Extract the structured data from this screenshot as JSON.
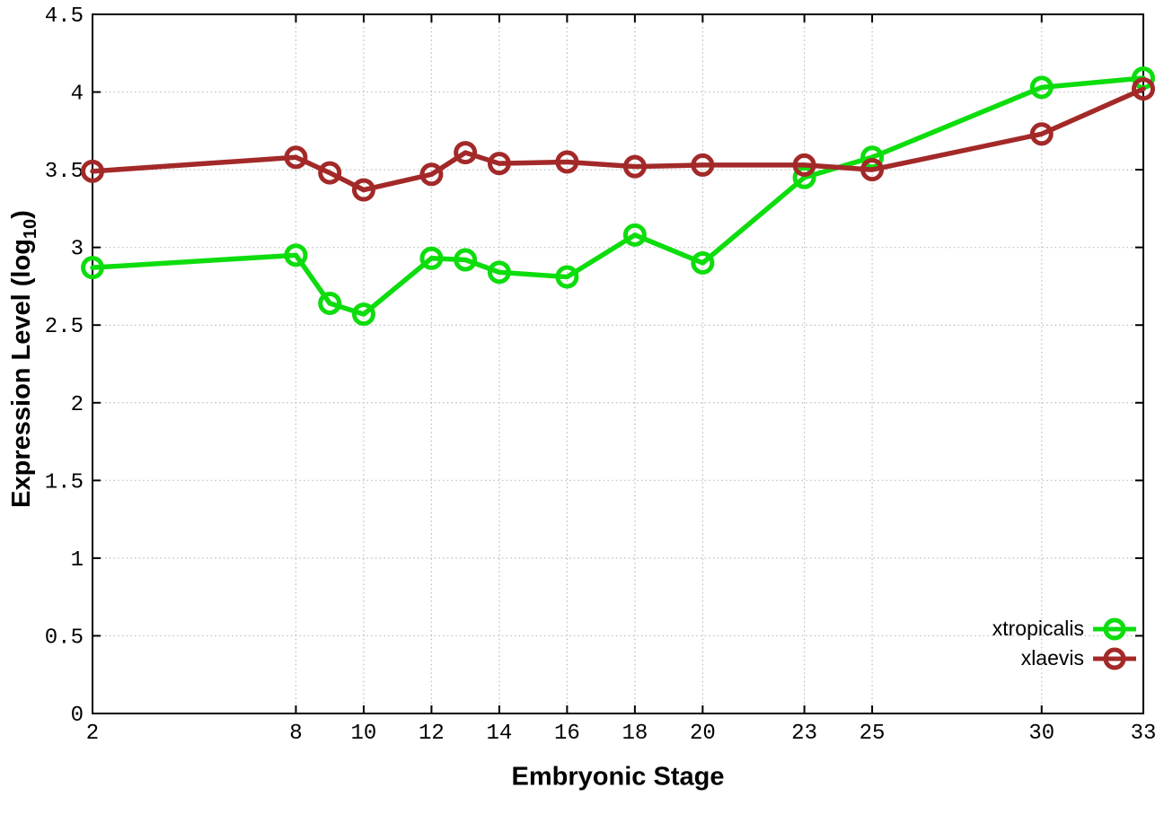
{
  "chart_data": {
    "type": "line",
    "title": "",
    "xlabel": "Embryonic Stage",
    "ylabel": "Expression Level (log10)",
    "ylabel_parts": {
      "main": "Expression Level (log",
      "sub": "10",
      "end": ")"
    },
    "xlim": [
      2,
      33
    ],
    "ylim": [
      0,
      4.5
    ],
    "grid": true,
    "legend_position": "bottom-right-inside",
    "x": [
      2,
      8,
      9,
      10,
      12,
      13,
      14,
      16,
      18,
      20,
      23,
      25,
      30,
      33
    ],
    "xticks": [
      2,
      8,
      10,
      12,
      14,
      16,
      18,
      20,
      23,
      25,
      30,
      33
    ],
    "xtick_labels": [
      "2",
      "8",
      "10",
      "12",
      "14",
      "16",
      "18",
      "20",
      "23",
      "25",
      "30",
      "33"
    ],
    "yticks": [
      0,
      0.5,
      1,
      1.5,
      2,
      2.5,
      3,
      3.5,
      4,
      4.5
    ],
    "ytick_labels": [
      "0",
      "0.5",
      "1",
      "1.5",
      "2",
      "2.5",
      "3",
      "3.5",
      "4",
      "4.5"
    ],
    "series": [
      {
        "name": "xtropicalis",
        "color": "#0ddd0d",
        "values": [
          2.87,
          2.95,
          2.64,
          2.57,
          2.93,
          2.92,
          2.84,
          2.81,
          3.08,
          2.9,
          3.45,
          3.58,
          4.03,
          4.09
        ]
      },
      {
        "name": "xlaevis",
        "color": "#a32929",
        "values": [
          3.49,
          3.58,
          3.48,
          3.37,
          3.47,
          3.61,
          3.54,
          3.55,
          3.52,
          3.53,
          3.53,
          3.5,
          3.73,
          4.02
        ]
      }
    ],
    "axis_color": "#000000",
    "grid_color": "#bbbbbb",
    "text_color": "#000000",
    "background": "#ffffff"
  }
}
